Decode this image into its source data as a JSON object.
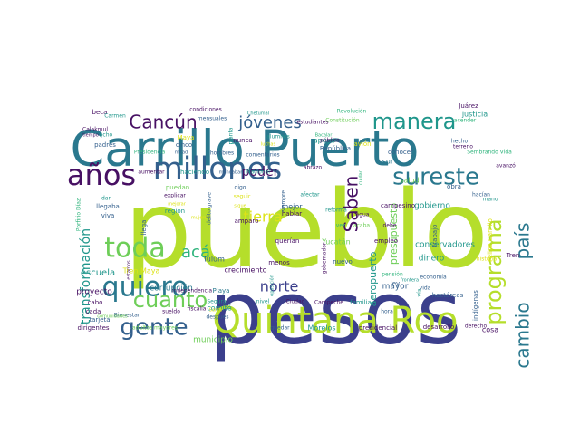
{
  "palette": {
    "dark_purple": "#471063",
    "indigo": "#3b3f8c",
    "slate_blue": "#34608d",
    "teal_blue": "#2a788e",
    "teal": "#1f968b",
    "green": "#2fb47c",
    "light_green": "#6ece58",
    "lime": "#b5de2b",
    "yellow": "#dde318"
  },
  "words": [
    "pueblo",
    "pesos",
    "Carrillo Puerto",
    "Quintana Roo",
    "años",
    "millones",
    "quiero",
    "gente",
    "toda",
    "manera",
    "sureste",
    "programa",
    "cambio",
    "país",
    "cuanto",
    "Saben",
    "jóvenes",
    "Cancún",
    "acá",
    "norte",
    "poder",
    "tierra",
    "transformación",
    "escuela",
    "Tren Maya",
    "corrupción",
    "municipio",
    "comité",
    "proyecto",
    "crecimiento",
    "Tulum",
    "Playa",
    "presupuesto",
    "aeropuerto",
    "mayor",
    "dinero",
    "conservadores",
    "gobierno",
    "salud",
    "sur",
    "trabajo",
    "apoyo",
    "beca",
    "Carmen",
    "Calakmul",
    "padres",
    "condiciones",
    "mensuales",
    "ocho",
    "cinco",
    "Maya",
    "Presidencia",
    "nunca",
    "hombres",
    "comentarios",
    "planta",
    "alumnos",
    "luchas",
    "Constitución",
    "Revolución",
    "estudiantes",
    "República",
    "pública",
    "avión",
    "conocer",
    "campesino",
    "obra",
    "justicia",
    "Juárez",
    "acender",
    "hecho",
    "terreno",
    "Sembrando Vida",
    "avanzó",
    "mano",
    "hacían",
    "Felipe Carrillo",
    "Tren",
    "historia",
    "economía",
    "hectáreas",
    "indígenas",
    "derecho",
    "cosa",
    "desarrollo",
    "presidencial",
    "hora",
    "pensión",
    "vida",
    "ley",
    "vía",
    "empleo",
    "agua",
    "debe",
    "acaba",
    "vez",
    "Yucatán",
    "nuevo",
    "menos",
    "querían",
    "mejor",
    "hablar",
    "siempre",
    "afectar",
    "reforma",
    "abrazo",
    "cuidar",
    "gobernador",
    "oposición",
    "nivel",
    "Ciudad",
    "Campeche",
    "familia",
    "Morelos",
    "quedar",
    "después",
    "Santa",
    "Segura",
    "fiscalía",
    "independencia",
    "dirigentes",
    "adultos mayores",
    "tarjeta",
    "Bienestar",
    "cada",
    "cabo",
    "comunidades",
    "sueldo",
    "estamos",
    "llegaba",
    "dar",
    "viva",
    "explicar",
    "seguir",
    "mejorar",
    "puedan",
    "llega",
    "mujeres",
    "región",
    "delito grave",
    "amparo",
    "digo",
    "sigue",
    "Porfirio Díaz",
    "tiempo",
    "mitad",
    "aumentar",
    "haciendo",
    "mandaban",
    "Nacional",
    "Bacalar",
    "Chetumal",
    "frontera"
  ]
}
